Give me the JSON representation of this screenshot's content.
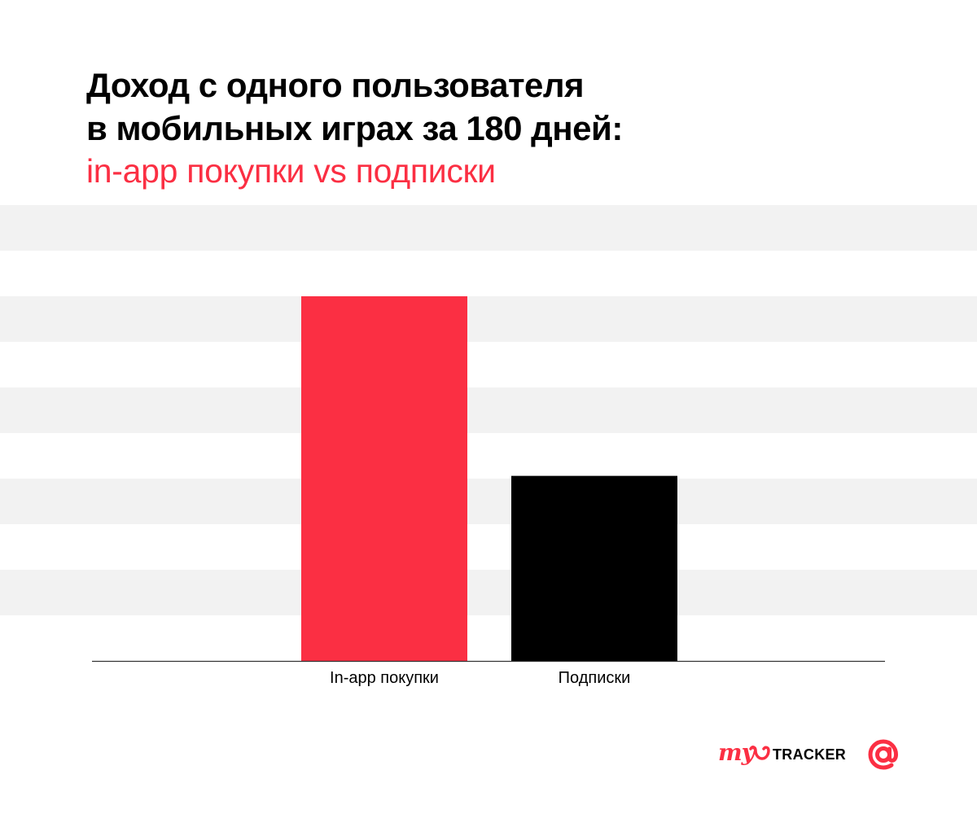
{
  "header": {
    "title_line1": "Доход с одного пользователя",
    "title_line2": "в мобильных играх за 180 дней:",
    "subtitle": "in-app покупки vs подписки"
  },
  "colors": {
    "accent": "#fb2f43",
    "black": "#000000",
    "stripe": "#f2f2f2",
    "axis": "#333333"
  },
  "chart_data": {
    "type": "bar",
    "title": "Доход с одного пользователя в мобильных играх за 180 дней: in-app покупки vs подписки",
    "categories": [
      "In-app покупки",
      "Подписки"
    ],
    "values": [
      8.0,
      4.06
    ],
    "bar_colors": [
      "#fb2f43",
      "#000000"
    ],
    "ylim": [
      0,
      10
    ],
    "xlabel": "",
    "ylabel": "",
    "grid": "horizontal alternating bands",
    "legend": "none"
  },
  "logos": {
    "mytracker_my": "my",
    "mytracker_word": "TRACKER",
    "brand_at": "@"
  }
}
